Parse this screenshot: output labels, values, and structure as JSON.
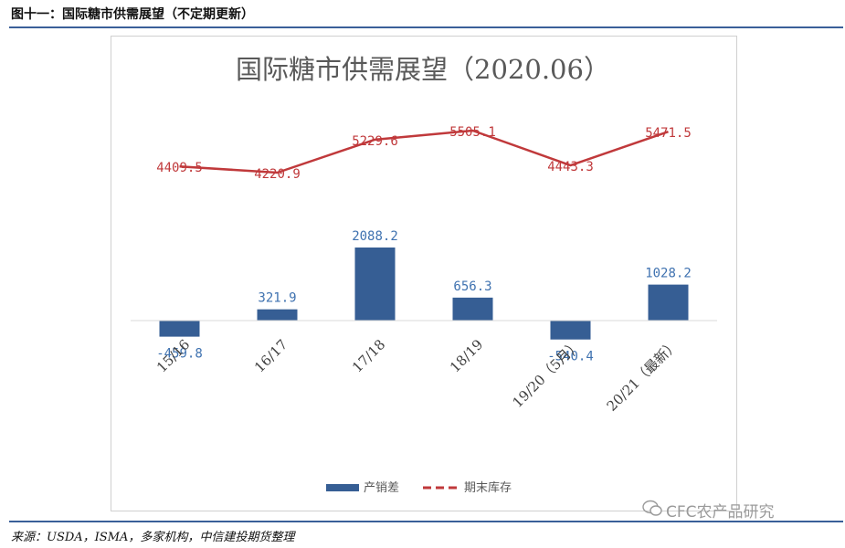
{
  "figure_caption": "图十一：国际糖市供需展望（不定期更新）",
  "source_note": "来源：USDA，ISMA，多家机构，中信建投期货整理",
  "watermark": "CFC农产品研究",
  "colors": {
    "bar": "#365e94",
    "line": "#c0393b",
    "bar_label": "#3f72b0",
    "line_label": "#c0393b",
    "rule": "#3a5f99"
  },
  "chart_data": {
    "type": "bar+line",
    "title": "国际糖市供需展望（2020.06）",
    "categories": [
      "15/16",
      "16/17",
      "17/18",
      "18/19",
      "19/20（5月）",
      "20/21（最新）"
    ],
    "series": [
      {
        "name": "产销差",
        "type": "bar",
        "values": [
          -459.8,
          321.9,
          2088.2,
          656.3,
          -540.4,
          1028.2
        ],
        "labels": [
          "-459.8",
          "321.9",
          "2088.2",
          "656.3",
          "-540.4",
          "1028.2"
        ]
      },
      {
        "name": "期末库存",
        "type": "line",
        "style": "dashed-legend",
        "values": [
          4409.5,
          4220.9,
          5229.6,
          5505.1,
          4443.3,
          5471.5
        ],
        "labels": [
          "4409.5",
          "4220.9",
          "5229.6",
          "5505.1",
          "4443.3",
          "5471.5"
        ]
      }
    ],
    "legend_position": "bottom",
    "grid": false
  }
}
